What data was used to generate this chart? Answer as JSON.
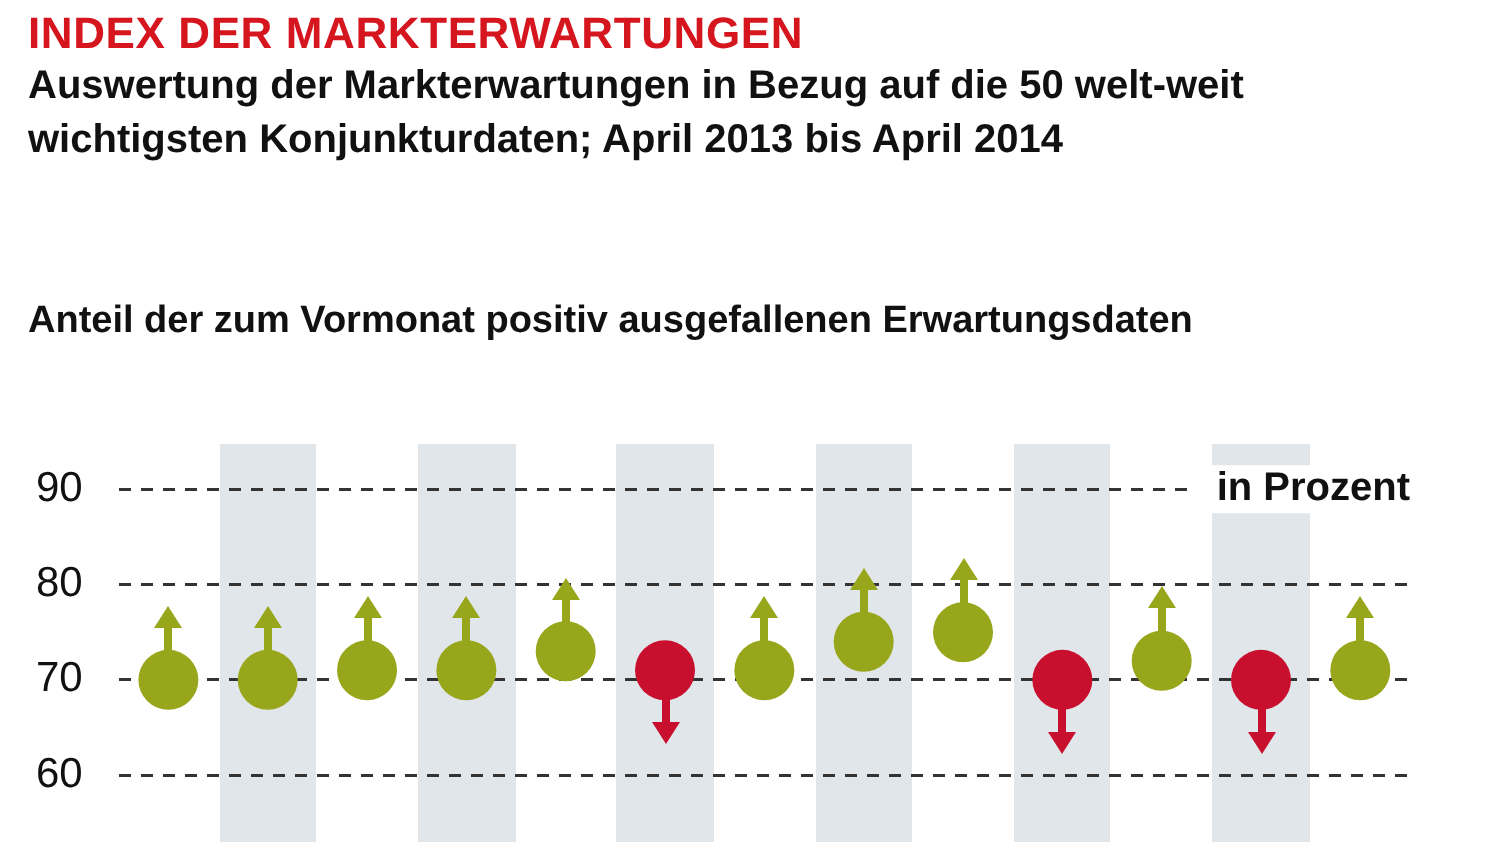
{
  "chart_data": {
    "type": "scatter",
    "title": "INDEX DER MARKTERWARTUNGEN",
    "subtitle": "Auswertung der Markterwartungen in Bezug auf die 50 welt-weit wichtigsten Konjunkturdaten; April 2013 bis April 2014",
    "annotations": [
      "Anteil der zum Vormonat positiv ausgefallenen Erwartungsdaten"
    ],
    "ylabel": "in Prozent",
    "categories": [
      null,
      null,
      null,
      null,
      null,
      null,
      null,
      null,
      null,
      null,
      null,
      null,
      null
    ],
    "series": [
      {
        "color": "#98a61b",
        "values": [
          70,
          70,
          71,
          71,
          73,
          71,
          71,
          74,
          75,
          70,
          72,
          70,
          71
        ],
        "colors": [
          "#98a61b",
          "#98a61b",
          "#98a61b",
          "#98a61b",
          "#98a61b",
          "#c8102e",
          "#98a61b",
          "#98a61b",
          "#98a61b",
          "#c8102e",
          "#98a61b",
          "#c8102e",
          "#98a61b"
        ]
      }
    ],
    "ylim": [
      60,
      90
    ],
    "yticks": [
      60,
      70,
      80,
      90
    ],
    "grid": "y",
    "marker": "circle",
    "legend": false
  }
}
